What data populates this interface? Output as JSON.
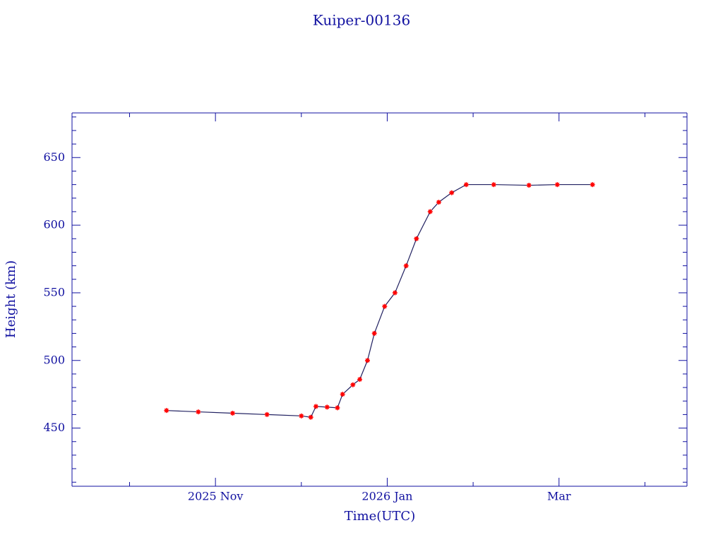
{
  "chart_data": {
    "type": "line",
    "title": "Kuiper-00136",
    "x_label": "Time(UTC)",
    "y_label": "Height (km)",
    "x": [
      10.43,
      10.8,
      11.2,
      11.6,
      12.0,
      12.11,
      12.17,
      12.3,
      12.42,
      12.48,
      12.6,
      12.68,
      12.77,
      12.85,
      12.97,
      13.09,
      13.22,
      13.34,
      13.5,
      13.6,
      13.75,
      13.92,
      14.24,
      14.65,
      14.98,
      15.39
    ],
    "values": [
      463,
      462,
      461,
      460,
      459,
      458,
      466,
      465.5,
      465,
      475,
      482,
      486,
      500,
      520,
      540,
      550,
      570,
      590,
      610,
      617,
      624,
      630,
      630,
      629.5,
      630,
      630
    ],
    "color": "#ff0000",
    "line_color": "#202060",
    "xlim": [
      9.33,
      16.49
    ],
    "xticks": [
      {
        "value": 11,
        "label": "2025 Nov"
      },
      {
        "value": 13,
        "label": "2026 Jan"
      },
      {
        "value": 15,
        "label": "Mar"
      }
    ],
    "xminor": [
      10,
      12,
      14,
      16
    ],
    "ylim": [
      407,
      683
    ],
    "yticks": [
      450,
      500,
      550,
      600,
      650
    ],
    "yminor": [
      410,
      420,
      430,
      440,
      460,
      470,
      480,
      490,
      510,
      520,
      530,
      540,
      560,
      570,
      580,
      590,
      610,
      620,
      630,
      640,
      660,
      670,
      680
    ]
  }
}
